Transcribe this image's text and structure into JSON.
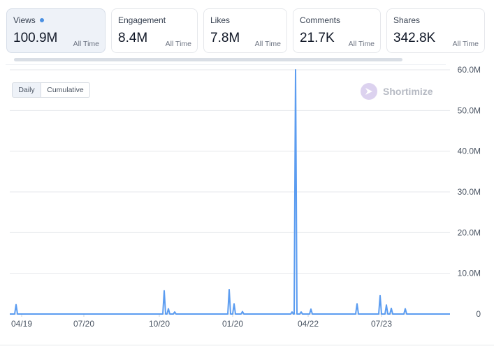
{
  "metrics": [
    {
      "label": "Views",
      "value": "100.9M",
      "period": "All Time",
      "active": true
    },
    {
      "label": "Engagement",
      "value": "8.4M",
      "period": "All Time",
      "active": false
    },
    {
      "label": "Likes",
      "value": "7.8M",
      "period": "All Time",
      "active": false
    },
    {
      "label": "Comments",
      "value": "21.7K",
      "period": "All Time",
      "active": false
    },
    {
      "label": "Shares",
      "value": "342.8K",
      "period": "All Time",
      "active": false
    }
  ],
  "toggle": {
    "daily": "Daily",
    "cumulative": "Cumulative",
    "selected": "Daily"
  },
  "brand": {
    "name": "Shortimize"
  },
  "colors": {
    "line": "#5b9cf0",
    "accent": "#4a90e2",
    "grid": "#e5e7eb"
  },
  "chart_data": {
    "type": "line",
    "title": "",
    "xlabel": "",
    "ylabel": "",
    "x_tick_labels": [
      "04/19",
      "07/20",
      "10/20",
      "01/20",
      "04/22",
      "07/23"
    ],
    "y_tick_labels": [
      "60.0M",
      "50.0M",
      "40.0M",
      "30.0M",
      "20.0M",
      "10.0M",
      "0"
    ],
    "ylim": [
      0,
      60000000
    ],
    "grid": true,
    "series": [
      {
        "x": [
          "04/19",
          "04/19+",
          "07/20",
          "10/20",
          "10/20+",
          "10/20++",
          "01/20",
          "01/20+",
          "01/20++",
          "04/22-",
          "04/22",
          "04/22+",
          "04/22++",
          "07/23-",
          "07/23-+",
          "07/23",
          "07/23+",
          "07/23++",
          "07/23+++"
        ],
        "values": [
          2300000,
          0,
          0,
          5700000,
          1300000,
          500000,
          6000000,
          2500000,
          600000,
          500000,
          60000000,
          500000,
          1200000,
          2500000,
          0,
          4500000,
          2200000,
          1400000,
          1300000
        ]
      }
    ]
  }
}
